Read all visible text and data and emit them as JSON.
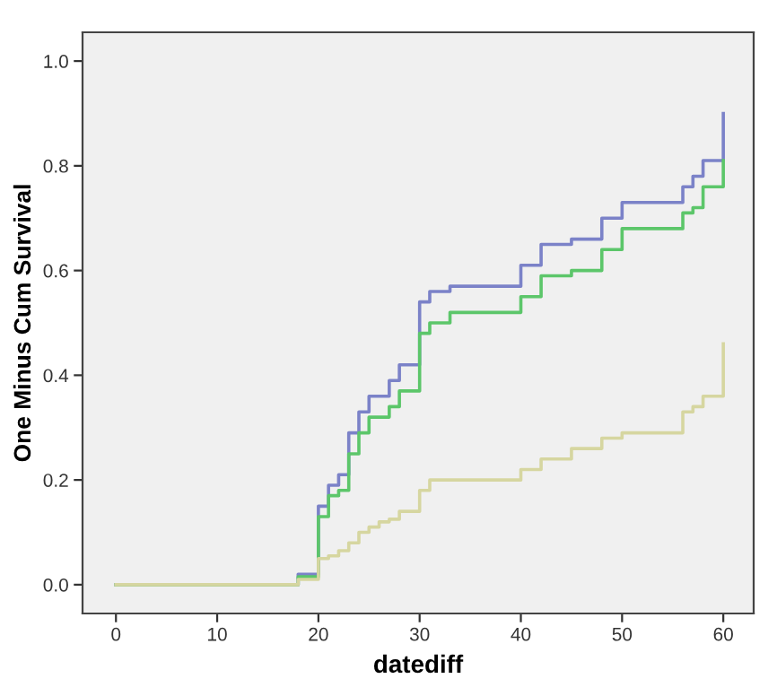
{
  "chart_data": {
    "type": "step",
    "xlabel": "datediff",
    "ylabel": "One Minus Cum Survival",
    "xlim": [
      -3.3,
      63
    ],
    "xticks": [
      0,
      10,
      20,
      30,
      40,
      50,
      60
    ],
    "ylim": [
      -0.055,
      1.055
    ],
    "yticks": [
      {
        "value": 0,
        "label": "0.0"
      },
      {
        "value": 0.2,
        "label": "0.2"
      },
      {
        "value": 0.4,
        "label": "0.4"
      },
      {
        "value": 0.6,
        "label": "0.6"
      },
      {
        "value": 0.8,
        "label": "0.8"
      },
      {
        "value": 1,
        "label": "1.0"
      }
    ],
    "grid": false,
    "series": [
      {
        "color": "#7b82c8",
        "x": [
          0,
          18,
          20,
          21,
          22,
          23,
          24,
          25,
          27,
          28,
          30,
          31,
          33,
          40,
          42,
          45,
          48,
          50,
          56,
          57,
          58,
          60,
          60
        ],
        "values": [
          0,
          0.02,
          0.15,
          0.19,
          0.21,
          0.29,
          0.33,
          0.36,
          0.39,
          0.42,
          0.54,
          0.56,
          0.57,
          0.61,
          0.65,
          0.66,
          0.7,
          0.73,
          0.76,
          0.78,
          0.81,
          0.81,
          0.9
        ]
      },
      {
        "color": "#5cc66a",
        "x": [
          0,
          18,
          20,
          21,
          22,
          23,
          24,
          25,
          27,
          28,
          30,
          31,
          33,
          40,
          42,
          45,
          48,
          50,
          56,
          57,
          58,
          60,
          60
        ],
        "values": [
          0,
          0.015,
          0.13,
          0.17,
          0.18,
          0.25,
          0.29,
          0.32,
          0.34,
          0.37,
          0.48,
          0.5,
          0.52,
          0.55,
          0.59,
          0.6,
          0.64,
          0.68,
          0.71,
          0.72,
          0.76,
          0.76,
          0.81
        ]
      },
      {
        "color": "#d6d6a0",
        "x": [
          0,
          18,
          20,
          21,
          22,
          23,
          24,
          25,
          26,
          27,
          28,
          30,
          31,
          33,
          40,
          42,
          45,
          48,
          50,
          56,
          57,
          58,
          60,
          60
        ],
        "values": [
          0,
          0.01,
          0.05,
          0.055,
          0.065,
          0.08,
          0.1,
          0.11,
          0.12,
          0.125,
          0.14,
          0.18,
          0.2,
          0.2,
          0.22,
          0.24,
          0.26,
          0.28,
          0.29,
          0.33,
          0.34,
          0.36,
          0.36,
          0.46
        ]
      }
    ]
  }
}
